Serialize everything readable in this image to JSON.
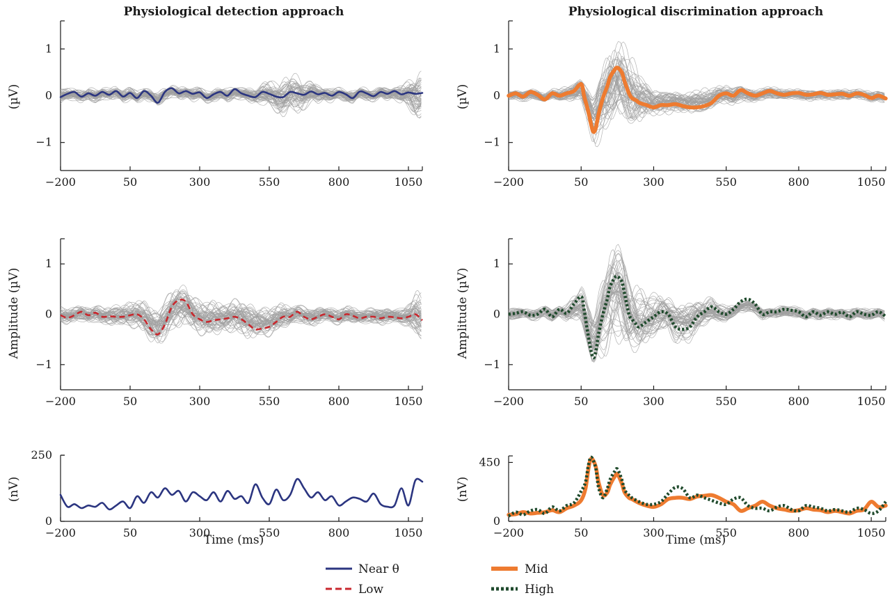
{
  "titles": {
    "left": "Physiological detection approach",
    "right": "Physiological discrimination approach"
  },
  "axis_labels": {
    "top_y": "(µV)",
    "mid_y": "Amplitude (µV)",
    "bottom_y": "(nV)",
    "x": "Time (ms)"
  },
  "legend": {
    "near": "Near θ",
    "low": "Low",
    "mid": "Mid",
    "high": "High"
  },
  "colors": {
    "near": "#2b3580",
    "low": "#c8272d",
    "mid": "#ee7b30",
    "high": "#1f4a2c",
    "trials": "#a0a0a0",
    "axis": "#1a1a1a"
  },
  "chart_data": [
    {
      "id": "top-left",
      "type": "line",
      "title": "Physiological detection approach",
      "xlabel": "",
      "ylabel": "(µV)",
      "xlim": [
        -200,
        1100
      ],
      "ylim": [
        -1.6,
        1.6
      ],
      "xticks": [
        "-200",
        "50",
        "300",
        "550",
        "800",
        "1050"
      ],
      "yticks": [
        "-1",
        "0",
        "1"
      ],
      "background_trials": "many overlaid single-trial traces in grey, roughly within ±0.2 µV (up to ±0.45 near 600 ms and 1100 ms)",
      "series": [
        {
          "name": "Near θ",
          "style": "near",
          "x": [
            -200,
            -175,
            -150,
            -125,
            -100,
            -75,
            -50,
            -25,
            0,
            25,
            50,
            75,
            100,
            125,
            150,
            175,
            200,
            225,
            250,
            275,
            300,
            325,
            350,
            375,
            400,
            425,
            450,
            475,
            500,
            525,
            550,
            575,
            600,
            625,
            650,
            675,
            700,
            725,
            750,
            775,
            800,
            825,
            850,
            875,
            900,
            925,
            950,
            975,
            1000,
            1025,
            1050,
            1075,
            1100
          ],
          "y": [
            -0.03,
            0.04,
            0.08,
            -0.02,
            0.05,
            0.0,
            0.08,
            0.02,
            0.1,
            -0.02,
            0.06,
            -0.05,
            0.1,
            0.0,
            -0.15,
            0.08,
            0.16,
            0.05,
            0.1,
            0.04,
            0.07,
            -0.05,
            0.03,
            0.08,
            0.0,
            0.14,
            0.05,
            0.0,
            -0.03,
            0.08,
            0.04,
            -0.02,
            -0.03,
            0.08,
            0.05,
            0.02,
            0.09,
            0.03,
            0.06,
            0.0,
            0.08,
            0.03,
            -0.05,
            0.09,
            0.05,
            -0.01,
            0.08,
            0.04,
            0.1,
            0.03,
            0.07,
            0.04,
            0.06
          ]
        }
      ]
    },
    {
      "id": "top-right",
      "type": "line",
      "title": "Physiological discrimination approach",
      "xlabel": "",
      "ylabel": "(µV)",
      "xlim": [
        -200,
        1100
      ],
      "ylim": [
        -1.6,
        1.6
      ],
      "xticks": [
        "-200",
        "50",
        "300",
        "550",
        "800",
        "1050"
      ],
      "yticks": [
        "-1",
        "0",
        "1"
      ],
      "background_trials": "many overlaid single-trial traces in grey, large oscillation around 100–300 ms (up to about ±0.9 µV)",
      "series": [
        {
          "name": "Mid",
          "style": "mid",
          "x": [
            -200,
            -175,
            -150,
            -125,
            -100,
            -75,
            -50,
            -25,
            0,
            25,
            50,
            60,
            75,
            90,
            100,
            110,
            125,
            140,
            150,
            165,
            175,
            190,
            200,
            215,
            225,
            240,
            250,
            275,
            300,
            325,
            350,
            375,
            400,
            425,
            450,
            475,
            500,
            525,
            550,
            575,
            600,
            625,
            650,
            675,
            700,
            725,
            750,
            775,
            800,
            825,
            850,
            875,
            900,
            925,
            950,
            975,
            1000,
            1025,
            1050,
            1075,
            1100
          ],
          "y": [
            0.0,
            0.05,
            -0.02,
            0.08,
            0.02,
            -0.08,
            0.05,
            0.0,
            0.05,
            0.1,
            0.25,
            0.0,
            -0.35,
            -0.75,
            -0.7,
            -0.4,
            -0.05,
            0.2,
            0.4,
            0.55,
            0.6,
            0.5,
            0.3,
            0.05,
            -0.05,
            -0.1,
            -0.15,
            -0.2,
            -0.25,
            -0.2,
            -0.2,
            -0.18,
            -0.22,
            -0.25,
            -0.25,
            -0.22,
            -0.15,
            0.0,
            0.05,
            0.0,
            0.12,
            0.05,
            0.0,
            0.05,
            0.1,
            0.05,
            0.02,
            0.05,
            0.06,
            0.02,
            0.03,
            0.06,
            0.02,
            0.03,
            0.04,
            0.0,
            0.05,
            0.02,
            -0.05,
            0.0,
            -0.06
          ]
        }
      ]
    },
    {
      "id": "mid-left",
      "type": "line",
      "title": "",
      "xlabel": "",
      "ylabel": "Amplitude (µV)",
      "xlim": [
        -200,
        1100
      ],
      "ylim": [
        -1.5,
        1.5
      ],
      "xticks": [
        "-200",
        "50",
        "300",
        "550",
        "800",
        "1050"
      ],
      "yticks": [
        "-1",
        "0",
        "1"
      ],
      "background_trials": "many overlaid single-trial traces in grey, larger spread (about ±0.4 µV) around 100–350 ms",
      "series": [
        {
          "name": "Low",
          "style": "low",
          "x": [
            -200,
            -175,
            -150,
            -125,
            -100,
            -75,
            -50,
            -25,
            0,
            25,
            50,
            75,
            100,
            125,
            150,
            175,
            200,
            225,
            250,
            275,
            300,
            325,
            350,
            375,
            400,
            425,
            450,
            475,
            500,
            525,
            550,
            575,
            600,
            625,
            650,
            675,
            700,
            725,
            750,
            775,
            800,
            825,
            850,
            875,
            900,
            925,
            950,
            975,
            1000,
            1025,
            1050,
            1075,
            1100
          ],
          "y": [
            -0.02,
            -0.07,
            -0.02,
            0.05,
            -0.02,
            0.03,
            -0.05,
            -0.04,
            -0.05,
            -0.05,
            -0.02,
            0.0,
            -0.1,
            -0.3,
            -0.4,
            -0.2,
            0.15,
            0.28,
            0.25,
            0.0,
            -0.1,
            -0.15,
            -0.12,
            -0.1,
            -0.08,
            -0.05,
            -0.1,
            -0.2,
            -0.3,
            -0.28,
            -0.25,
            -0.15,
            -0.05,
            -0.05,
            0.05,
            -0.05,
            -0.1,
            -0.05,
            0.0,
            -0.05,
            -0.1,
            0.0,
            -0.03,
            -0.08,
            -0.05,
            -0.05,
            -0.08,
            -0.05,
            -0.06,
            -0.08,
            -0.05,
            0.0,
            -0.12
          ]
        }
      ]
    },
    {
      "id": "mid-right",
      "type": "line",
      "title": "",
      "xlabel": "",
      "ylabel": "Amplitude (µV)",
      "xlim": [
        -200,
        1100
      ],
      "ylim": [
        -1.5,
        1.5
      ],
      "xticks": [
        "-200",
        "50",
        "300",
        "550",
        "800",
        "1050"
      ],
      "yticks": [
        "-1",
        "0",
        "1"
      ],
      "background_trials": "many overlaid single-trial traces in grey, large oscillation around 50–300 ms (up to about ±1.0 µV)",
      "series": [
        {
          "name": "High",
          "style": "high",
          "x": [
            -200,
            -175,
            -150,
            -125,
            -100,
            -75,
            -50,
            -25,
            0,
            25,
            50,
            60,
            75,
            90,
            100,
            110,
            125,
            140,
            150,
            165,
            175,
            190,
            200,
            215,
            225,
            240,
            250,
            275,
            300,
            325,
            350,
            375,
            400,
            425,
            450,
            475,
            500,
            525,
            550,
            575,
            600,
            625,
            650,
            675,
            700,
            725,
            750,
            775,
            800,
            825,
            850,
            875,
            900,
            925,
            950,
            975,
            1000,
            1025,
            1050,
            1075,
            1100
          ],
          "y": [
            0.0,
            0.02,
            0.05,
            -0.02,
            0.0,
            0.1,
            -0.05,
            0.1,
            0.02,
            0.2,
            0.35,
            0.1,
            -0.45,
            -0.85,
            -0.75,
            -0.4,
            0.0,
            0.3,
            0.55,
            0.72,
            0.75,
            0.65,
            0.4,
            0.0,
            -0.1,
            -0.2,
            -0.25,
            -0.15,
            -0.05,
            0.05,
            0.0,
            -0.25,
            -0.3,
            -0.25,
            -0.05,
            0.05,
            0.15,
            0.05,
            0.0,
            0.1,
            0.25,
            0.3,
            0.2,
            0.0,
            0.05,
            0.05,
            0.1,
            0.08,
            0.05,
            -0.05,
            0.05,
            -0.02,
            0.05,
            0.0,
            0.04,
            -0.05,
            0.05,
            0.0,
            -0.02,
            0.05,
            -0.05
          ]
        }
      ]
    },
    {
      "id": "bottom-left",
      "type": "line",
      "title": "",
      "xlabel": "Time (ms)",
      "ylabel": "(nV)",
      "xlim": [
        -200,
        1100
      ],
      "ylim": [
        0,
        250
      ],
      "xticks": [
        "-200",
        "50",
        "300",
        "550",
        "800",
        "1050"
      ],
      "yticks": [
        "0",
        "250"
      ],
      "series": [
        {
          "name": "Near θ",
          "style": "near",
          "x": [
            -200,
            -175,
            -150,
            -125,
            -100,
            -75,
            -50,
            -25,
            0,
            25,
            50,
            75,
            100,
            125,
            150,
            175,
            200,
            225,
            250,
            275,
            300,
            325,
            350,
            375,
            400,
            425,
            450,
            475,
            500,
            525,
            550,
            575,
            600,
            625,
            650,
            675,
            700,
            725,
            750,
            775,
            800,
            825,
            850,
            875,
            900,
            925,
            950,
            975,
            1000,
            1025,
            1050,
            1075,
            1100
          ],
          "y": [
            100,
            55,
            65,
            50,
            60,
            55,
            70,
            45,
            60,
            75,
            50,
            95,
            70,
            110,
            90,
            125,
            100,
            115,
            75,
            110,
            95,
            80,
            110,
            75,
            115,
            85,
            95,
            70,
            140,
            90,
            65,
            120,
            80,
            100,
            160,
            125,
            90,
            110,
            80,
            95,
            60,
            75,
            90,
            85,
            75,
            105,
            65,
            55,
            60,
            125,
            60,
            155,
            150
          ]
        }
      ]
    },
    {
      "id": "bottom-right",
      "type": "line",
      "title": "",
      "xlabel": "Time (ms)",
      "ylabel": "(nV)",
      "xlim": [
        -200,
        1100
      ],
      "ylim": [
        0,
        500
      ],
      "xticks": [
        "-200",
        "50",
        "300",
        "550",
        "800",
        "1050"
      ],
      "yticks": [
        "0",
        "450"
      ],
      "series": [
        {
          "name": "Mid",
          "style": "mid",
          "x": [
            -200,
            -175,
            -150,
            -125,
            -100,
            -75,
            -50,
            -25,
            0,
            25,
            50,
            65,
            75,
            85,
            100,
            110,
            125,
            140,
            150,
            165,
            175,
            190,
            200,
            215,
            225,
            250,
            275,
            300,
            325,
            350,
            375,
            400,
            425,
            450,
            475,
            500,
            525,
            550,
            575,
            600,
            625,
            650,
            675,
            700,
            725,
            750,
            775,
            800,
            825,
            850,
            875,
            900,
            925,
            950,
            975,
            1000,
            1025,
            1050,
            1075,
            1100
          ],
          "y": [
            50,
            55,
            70,
            60,
            65,
            70,
            85,
            70,
            100,
            120,
            160,
            250,
            400,
            480,
            420,
            300,
            200,
            220,
            280,
            340,
            360,
            290,
            220,
            180,
            170,
            140,
            120,
            110,
            130,
            170,
            180,
            180,
            170,
            190,
            195,
            200,
            180,
            150,
            130,
            80,
            100,
            120,
            150,
            120,
            100,
            90,
            80,
            85,
            100,
            90,
            85,
            70,
            80,
            70,
            60,
            80,
            90,
            150,
            110,
            120
          ]
        },
        {
          "name": "High",
          "style": "high",
          "x": [
            -200,
            -175,
            -150,
            -125,
            -100,
            -75,
            -50,
            -25,
            0,
            25,
            50,
            65,
            75,
            85,
            100,
            110,
            125,
            140,
            150,
            165,
            175,
            190,
            200,
            215,
            225,
            250,
            275,
            300,
            325,
            350,
            375,
            400,
            425,
            450,
            475,
            500,
            525,
            550,
            575,
            600,
            625,
            650,
            675,
            700,
            725,
            750,
            775,
            800,
            825,
            850,
            875,
            900,
            925,
            950,
            975,
            1000,
            1025,
            1050,
            1075,
            1100
          ],
          "y": [
            40,
            70,
            50,
            80,
            90,
            60,
            110,
            80,
            120,
            140,
            230,
            300,
            430,
            490,
            410,
            260,
            180,
            250,
            320,
            380,
            400,
            320,
            240,
            200,
            180,
            150,
            130,
            130,
            150,
            210,
            260,
            250,
            180,
            200,
            180,
            160,
            140,
            130,
            170,
            180,
            120,
            100,
            100,
            80,
            110,
            120,
            90,
            80,
            120,
            110,
            100,
            80,
            90,
            80,
            70,
            100,
            90,
            60,
            80,
            150
          ]
        }
      ]
    }
  ]
}
